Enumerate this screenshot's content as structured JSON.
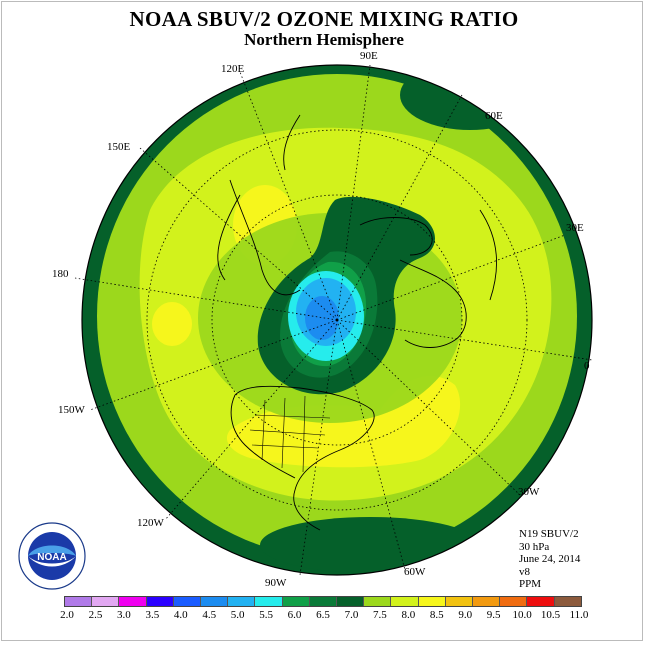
{
  "title": "NOAA SBUV/2 OZONE MIXING RATIO",
  "subtitle": "Northern Hemisphere",
  "longitude_labels": [
    "90E",
    "60E",
    "30E",
    "0",
    "30W",
    "60W",
    "90W",
    "120W",
    "150W",
    "180",
    "150E",
    "120E"
  ],
  "info": {
    "satellite": "N19 SBUV/2",
    "level": "30 hPa",
    "date": "June 24, 2014",
    "version": "v8",
    "units": "PPM"
  },
  "colorbar": {
    "ticks": [
      "2.0",
      "2.5",
      "3.0",
      "3.5",
      "4.0",
      "4.5",
      "5.0",
      "5.5",
      "6.0",
      "6.5",
      "7.0",
      "7.5",
      "8.0",
      "8.5",
      "9.0",
      "9.5",
      "10.0",
      "10.5",
      "11.0"
    ],
    "colors": [
      "#b07ae8",
      "#e2a8f2",
      "#f000f0",
      "#2a00ff",
      "#1a5cff",
      "#1c8cf0",
      "#22b2f2",
      "#26ecec",
      "#10a048",
      "#0a7a38",
      "#05602a",
      "#9cd81c",
      "#d2f21c",
      "#f6f61c",
      "#f2c210",
      "#f29a10",
      "#f06c10",
      "#ee0e0e",
      "#8c5a3c"
    ]
  },
  "logo": {
    "text": "NOAA"
  }
}
